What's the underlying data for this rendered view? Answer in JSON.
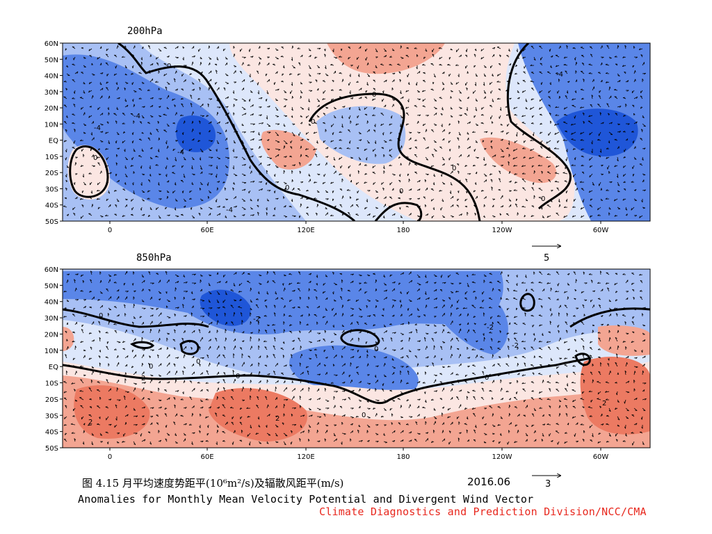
{
  "colors": {
    "strong_blue": "#1f56d8",
    "mid_blue": "#5a86e8",
    "light_blue": "#a8c0f4",
    "pale_blue": "#dde7fb",
    "pale_red": "#fbe6e2",
    "light_red": "#f3a592",
    "mid_red": "#ec7a62",
    "contour_zero": "#000000",
    "credit_red": "#e8281e"
  },
  "lat_ticks": [
    "60N",
    "50N",
    "40N",
    "30N",
    "20N",
    "10N",
    "EQ",
    "10S",
    "20S",
    "30S",
    "40S",
    "50S"
  ],
  "lon_ticks": [
    "0",
    "60E",
    "120E",
    "180",
    "120W",
    "60W"
  ],
  "panel_top": {
    "title": "200hPa",
    "reference_vector_label": "5",
    "contour_labels": [
      "0",
      "0",
      "0",
      "0",
      "0",
      "0",
      "0",
      "0",
      "-4",
      "-4",
      "-4",
      "-4",
      "-4"
    ]
  },
  "panel_bottom": {
    "title": "850hPa",
    "reference_vector_label": "3",
    "contour_labels": [
      "0",
      "0",
      "0",
      "0",
      "0",
      "0",
      "0",
      "-2",
      "-2",
      "-2",
      "2",
      "2",
      "2",
      "2"
    ]
  },
  "caption": {
    "chinese": "图 4.15  月平均速度势距平(10⁶m²/s)及辐散风距平(m/s)",
    "date": "2016.06",
    "english": "Anomalies for Monthly Mean Velocity Potential and Divergent Wind Vector",
    "credit": "Climate Diagnostics and Prediction Division/NCC/CMA"
  }
}
